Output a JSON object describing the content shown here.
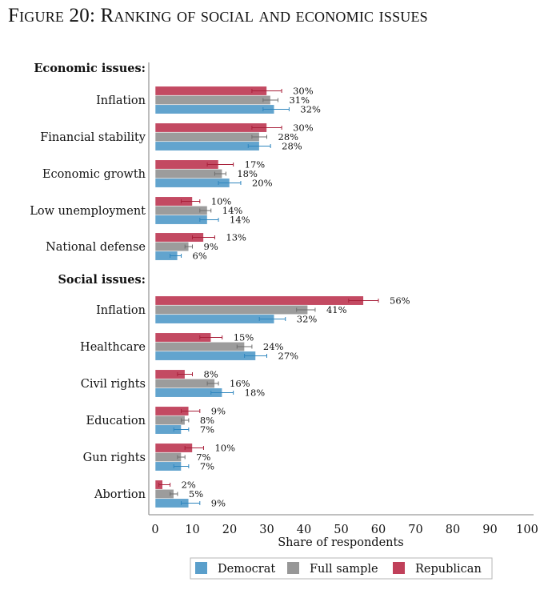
{
  "figure": {
    "title": "Figure 20: Ranking of social and economic issues"
  },
  "chart_data": {
    "type": "bar",
    "orientation": "horizontal",
    "title": "Figure 20: Ranking of social and economic issues",
    "xlabel": "Share of respondents",
    "ylabel": "",
    "xlim": [
      0,
      100
    ],
    "xticks": [
      0,
      10,
      20,
      30,
      40,
      50,
      60,
      70,
      80,
      90,
      100
    ],
    "grid": false,
    "legend": {
      "placement": "bottom",
      "entries": [
        "Democrat",
        "Full sample",
        "Republican"
      ]
    },
    "series_colors": {
      "Democrat": "#5A9FCB",
      "Full sample": "#979797",
      "Republican": "#C0405A"
    },
    "groups": [
      {
        "label": "Economic issues:",
        "categories": [
          {
            "label": "Inflation",
            "Republican": {
              "value": 30,
              "label": "30%",
              "ci": [
                26,
                34
              ]
            },
            "Full sample": {
              "value": 31,
              "label": "31%",
              "ci": [
                29,
                33
              ]
            },
            "Democrat": {
              "value": 32,
              "label": "32%",
              "ci": [
                29,
                36
              ]
            }
          },
          {
            "label": "Financial stability",
            "Republican": {
              "value": 30,
              "label": "30%",
              "ci": [
                26,
                34
              ]
            },
            "Full sample": {
              "value": 28,
              "label": "28%",
              "ci": [
                26,
                30
              ]
            },
            "Democrat": {
              "value": 28,
              "label": "28%",
              "ci": [
                25,
                31
              ]
            }
          },
          {
            "label": "Economic growth",
            "Republican": {
              "value": 17,
              "label": "17%",
              "ci": [
                14,
                21
              ]
            },
            "Full sample": {
              "value": 18,
              "label": "18%",
              "ci": [
                16,
                19
              ]
            },
            "Democrat": {
              "value": 20,
              "label": "20%",
              "ci": [
                17,
                23
              ]
            }
          },
          {
            "label": "Low unemployment",
            "Republican": {
              "value": 10,
              "label": "10%",
              "ci": [
                7,
                12
              ]
            },
            "Full sample": {
              "value": 14,
              "label": "14%",
              "ci": [
                12,
                15
              ]
            },
            "Democrat": {
              "value": 14,
              "label": "14%",
              "ci": [
                12,
                17
              ]
            }
          },
          {
            "label": "National defense",
            "Republican": {
              "value": 13,
              "label": "13%",
              "ci": [
                10,
                16
              ]
            },
            "Full sample": {
              "value": 9,
              "label": "9%",
              "ci": [
                8,
                10
              ]
            },
            "Democrat": {
              "value": 6,
              "label": "6%",
              "ci": [
                4,
                7
              ]
            }
          }
        ]
      },
      {
        "label": "Social issues:",
        "categories": [
          {
            "label": "Inflation",
            "Republican": {
              "value": 56,
              "label": "56%",
              "ci": [
                52,
                60
              ]
            },
            "Full sample": {
              "value": 41,
              "label": "41%",
              "ci": [
                38,
                43
              ]
            },
            "Democrat": {
              "value": 32,
              "label": "32%",
              "ci": [
                28,
                35
              ]
            }
          },
          {
            "label": "Healthcare",
            "Republican": {
              "value": 15,
              "label": "15%",
              "ci": [
                12,
                18
              ]
            },
            "Full sample": {
              "value": 24,
              "label": "24%",
              "ci": [
                22,
                26
              ]
            },
            "Democrat": {
              "value": 27,
              "label": "27%",
              "ci": [
                24,
                30
              ]
            }
          },
          {
            "label": "Civil rights",
            "Republican": {
              "value": 8,
              "label": "8%",
              "ci": [
                6,
                10
              ]
            },
            "Full sample": {
              "value": 16,
              "label": "16%",
              "ci": [
                14,
                17
              ]
            },
            "Democrat": {
              "value": 18,
              "label": "18%",
              "ci": [
                15,
                21
              ]
            }
          },
          {
            "label": "Education",
            "Republican": {
              "value": 9,
              "label": "9%",
              "ci": [
                7,
                12
              ]
            },
            "Full sample": {
              "value": 8,
              "label": "8%",
              "ci": [
                7,
                9
              ]
            },
            "Democrat": {
              "value": 7,
              "label": "7%",
              "ci": [
                5,
                9
              ]
            }
          },
          {
            "label": "Gun rights",
            "Republican": {
              "value": 10,
              "label": "10%",
              "ci": [
                8,
                13
              ]
            },
            "Full sample": {
              "value": 7,
              "label": "7%",
              "ci": [
                6,
                8
              ]
            },
            "Democrat": {
              "value": 7,
              "label": "7%",
              "ci": [
                5,
                9
              ]
            }
          },
          {
            "label": "Abortion",
            "Republican": {
              "value": 2,
              "label": "2%",
              "ci": [
                1,
                4
              ]
            },
            "Full sample": {
              "value": 5,
              "label": "5%",
              "ci": [
                4,
                6
              ]
            },
            "Democrat": {
              "value": 9,
              "label": "9%",
              "ci": [
                7,
                12
              ]
            }
          }
        ]
      }
    ]
  }
}
